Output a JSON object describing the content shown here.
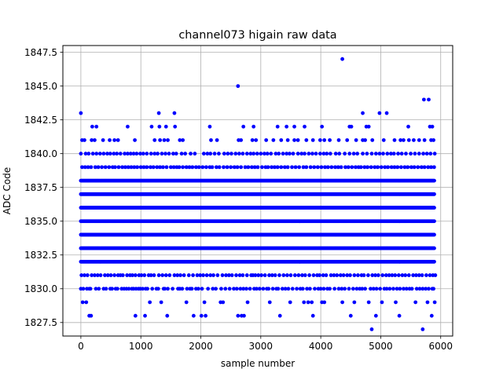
{
  "chart_data": {
    "type": "scatter",
    "title": "channel073 higain raw data",
    "xlabel": "sample number",
    "ylabel": "ADC Code",
    "xlim": [
      -300,
      6200
    ],
    "ylim": [
      1826.5,
      1848.0
    ],
    "x_ticks": [
      0,
      1000,
      2000,
      3000,
      4000,
      5000,
      6000
    ],
    "x_tick_labels": [
      "0",
      "1000",
      "2000",
      "3000",
      "4000",
      "5000",
      "6000"
    ],
    "y_ticks": [
      1827.5,
      1830.0,
      1832.5,
      1835.0,
      1837.5,
      1840.0,
      1842.5,
      1845.0,
      1847.5
    ],
    "y_tick_labels": [
      "1827.5",
      "1830.0",
      "1832.5",
      "1835.0",
      "1837.5",
      "1840.0",
      "1842.5",
      "1845.0",
      "1847.5"
    ],
    "grid": true,
    "marker_color": "#0000ff",
    "x_range": [
      0,
      5900
    ],
    "dense_levels": [
      1832,
      1833,
      1834,
      1835,
      1836,
      1837,
      1838
    ],
    "sparse_levels": [
      {
        "y": 1827,
        "x": [
          4850,
          5700
        ]
      },
      {
        "y": 1828,
        "x": [
          140,
          170,
          910,
          1070,
          1440,
          1880,
          2010,
          2080,
          2620,
          2680,
          2720,
          3320,
          3870,
          4500,
          4920,
          5310,
          5850
        ]
      },
      {
        "y": 1829,
        "x": [
          30,
          90,
          1150,
          1340,
          1760,
          2060,
          2330,
          2370,
          2780,
          3150,
          3490,
          3720,
          3790,
          3850,
          4020,
          4060,
          4360,
          4560,
          4800,
          5020,
          5250,
          5580,
          5780,
          5900
        ]
      },
      {
        "y": 1830,
        "x": [
          0,
          40,
          100,
          140,
          160,
          250,
          300,
          380,
          420,
          490,
          520,
          580,
          610,
          680,
          720,
          760,
          800,
          850,
          880,
          920,
          960,
          990,
          1030,
          1080,
          1110,
          1190,
          1260,
          1290,
          1380,
          1400,
          1450,
          1530,
          1620,
          1650,
          1690,
          1770,
          1820,
          1850,
          1920,
          1960,
          2020,
          2120,
          2200,
          2250,
          2340,
          2410,
          2480,
          2550,
          2600,
          2660,
          2710,
          2760,
          2820,
          2890,
          2930,
          2980,
          3040,
          3100,
          3130,
          3200,
          3260,
          3290,
          3360,
          3410,
          3460,
          3530,
          3600,
          3660,
          3700,
          3770,
          3820,
          3900,
          3960,
          4000,
          4050,
          4110,
          4150,
          4230,
          4300,
          4350,
          4400,
          4470,
          4540,
          4600,
          4650,
          4690,
          4740,
          4830,
          4880,
          4930,
          4990,
          5060,
          5100,
          5150,
          5210,
          5270,
          5320,
          5380,
          5430,
          5480,
          5520,
          5600,
          5650,
          5700,
          5750,
          5800,
          5860,
          5880
        ]
      },
      {
        "y": 1831,
        "x": [
          10,
          60,
          110,
          180,
          230,
          280,
          330,
          400,
          450,
          500,
          560,
          620,
          660,
          700,
          770,
          820,
          860,
          910,
          970,
          1010,
          1060,
          1130,
          1170,
          1220,
          1300,
          1360,
          1420,
          1480,
          1560,
          1610,
          1660,
          1720,
          1800,
          1870,
          1940,
          1990,
          2040,
          2100,
          2160,
          2210,
          2280,
          2360,
          2420,
          2470,
          2520,
          2590,
          2650,
          2700,
          2770,
          2840,
          2870,
          2910,
          2960,
          3010,
          3070,
          3140,
          3190,
          3240,
          3310,
          3380,
          3440,
          3500,
          3570,
          3630,
          3690,
          3740,
          3810,
          3880,
          3940,
          3980,
          4040,
          4090,
          4170,
          4220,
          4270,
          4330,
          4380,
          4440,
          4490,
          4560,
          4620,
          4680,
          4720,
          4790,
          4860,
          4910,
          4960,
          5030,
          5090,
          5140,
          5190,
          5240,
          5300,
          5360,
          5410,
          5470,
          5540,
          5590,
          5640,
          5690,
          5760,
          5820,
          5870,
          5910
        ]
      },
      {
        "y": 1839,
        "x": [
          20,
          70,
          120,
          170,
          240,
          290,
          350,
          410,
          470,
          530,
          570,
          630,
          690,
          740,
          790,
          840,
          890,
          940,
          1000,
          1050,
          1100,
          1160,
          1210,
          1270,
          1320,
          1370,
          1430,
          1500,
          1550,
          1600,
          1640,
          1700,
          1760,
          1810,
          1860,
          1920,
          1970,
          2030,
          2090,
          2150,
          2190,
          2260,
          2310,
          2380,
          2440,
          2500,
          2560,
          2610,
          2670,
          2740,
          2790,
          2850,
          2900,
          2950,
          3020,
          3080,
          3120,
          3180,
          3230,
          3280,
          3340,
          3400,
          3450,
          3520,
          3580,
          3640,
          3710,
          3760,
          3830,
          3890,
          3950,
          4010,
          4070,
          4120,
          4180,
          4240,
          4290,
          4340,
          4410,
          4460,
          4520,
          4580,
          4630,
          4670,
          4730,
          4780,
          4840,
          4900,
          4950,
          5010,
          5070,
          5120,
          5180,
          5230,
          5280,
          5340,
          5400,
          5450,
          5510,
          5560,
          5620,
          5680,
          5730,
          5790,
          5840,
          5890
        ]
      },
      {
        "y": 1840,
        "x": [
          0,
          80,
          130,
          200,
          260,
          320,
          380,
          440,
          490,
          550,
          600,
          660,
          730,
          780,
          830,
          880,
          930,
          990,
          1040,
          1100,
          1170,
          1230,
          1280,
          1350,
          1410,
          1470,
          1540,
          1590,
          1680,
          1740,
          1830,
          1900,
          2050,
          2110,
          2160,
          2230,
          2300,
          2390,
          2450,
          2510,
          2580,
          2640,
          2700,
          2770,
          2830,
          2880,
          2940,
          3000,
          3060,
          3110,
          3170,
          3250,
          3300,
          3370,
          3430,
          3480,
          3540,
          3620,
          3680,
          3730,
          3800,
          3860,
          3920,
          3990,
          4050,
          4100,
          4160,
          4250,
          4310,
          4400,
          4480,
          4550,
          4610,
          4700,
          4770,
          4850,
          4920,
          4980,
          5040,
          5110,
          5170,
          5220,
          5290,
          5350,
          5420,
          5500,
          5570,
          5640,
          5710,
          5770,
          5830,
          5900
        ]
      },
      {
        "y": 1841,
        "x": [
          20,
          60,
          180,
          230,
          370,
          480,
          560,
          620,
          900,
          1230,
          1320,
          1390,
          1450,
          1650,
          1700,
          2170,
          2270,
          2630,
          2670,
          2860,
          2920,
          3090,
          3210,
          3340,
          3450,
          3560,
          3620,
          3760,
          3870,
          3990,
          4060,
          4150,
          4300,
          4440,
          4590,
          4700,
          4740,
          4860,
          5050,
          5230,
          5330,
          5380,
          5470,
          5550,
          5640,
          5730,
          5840,
          5880
        ]
      },
      {
        "y": 1842,
        "x": [
          190,
          260,
          780,
          1180,
          1310,
          1420,
          1570,
          2150,
          2710,
          2880,
          3280,
          3430,
          3560,
          3730,
          4020,
          4480,
          4510,
          4760,
          4800,
          5460,
          5820,
          5860
        ]
      },
      {
        "y": 1843,
        "x": [
          0,
          1300,
          1560,
          4700,
          4980,
          5100
        ]
      },
      {
        "y": 1844,
        "x": [
          5720,
          5800
        ]
      },
      {
        "y": 1845,
        "x": [
          2620
        ]
      },
      {
        "y": 1847,
        "x": [
          4360
        ]
      }
    ]
  }
}
